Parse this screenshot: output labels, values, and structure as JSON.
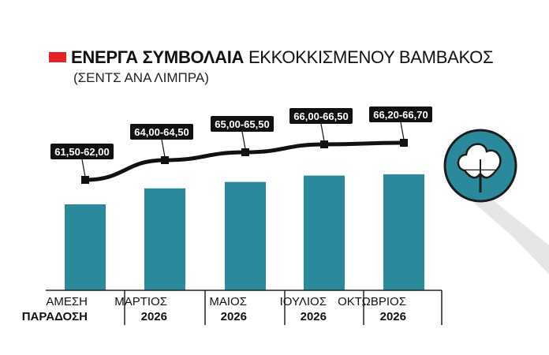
{
  "chart_data": {
    "type": "bar",
    "title_bold": "ΕΝΕΡΓΑ ΣΥΜΒΟΛΑΙΑ",
    "title_regular": "ΕΚΚΟΚΚΙΣΜΕΝΟΥ ΒΑΜΒΑΚΟΣ",
    "subtitle": "(ΣΕΝΤΣ ΑΝΑ ΛΙΜΠΡΑ)",
    "categories": [
      {
        "line1": "ΑΜΕΣΗ",
        "line2": "ΠΑΡΑΔΟΣΗ"
      },
      {
        "line1": "ΜΑΡΤΙΟΣ",
        "line2": "2026"
      },
      {
        "line1": "ΜΑΙΟΣ",
        "line2": "2026"
      },
      {
        "line1": "ΙΟΥΛΙΟΣ",
        "line2": "2026"
      },
      {
        "line1": "ΟΚΤΩΒΡΙΟΣ",
        "line2": "2026"
      }
    ],
    "ranges": [
      {
        "low": 61.5,
        "high": 62.0,
        "label": "61,50-62,00"
      },
      {
        "low": 64.0,
        "high": 64.5,
        "label": "64,00-64,50"
      },
      {
        "low": 65.0,
        "high": 65.5,
        "label": "65,00-65,50"
      },
      {
        "low": 66.0,
        "high": 66.5,
        "label": "66,00-66,50"
      },
      {
        "low": 66.2,
        "high": 66.7,
        "label": "66,20-66,70"
      }
    ],
    "colors": {
      "bar": "#2a8a9b",
      "line": "#111111",
      "label_bg": "#111111",
      "label_text": "#ffffff",
      "title_marker": "#e32226",
      "icon_circle": "#2a8a9b",
      "icon_shadow": "#e6e6e6"
    },
    "icon": "cotton-boll-icon"
  }
}
